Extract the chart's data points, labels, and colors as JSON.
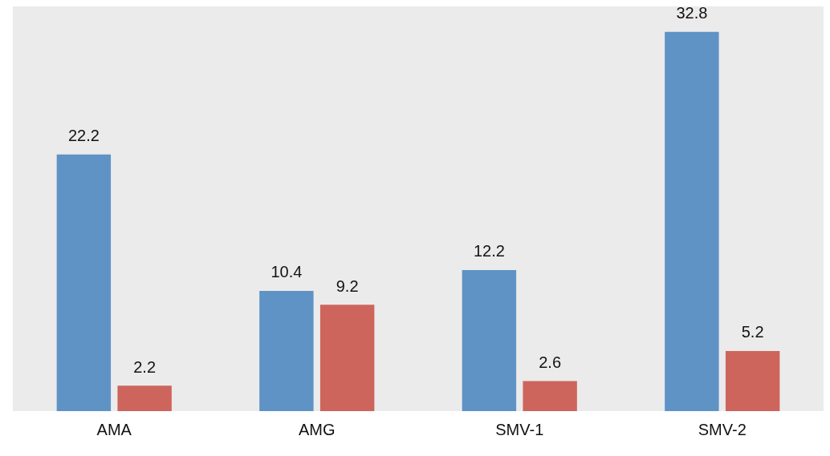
{
  "chart_data": {
    "type": "bar",
    "categories": [
      "AMA",
      "AMG",
      "SMV-1",
      "SMV-2"
    ],
    "series": [
      {
        "color": "#5f93c6",
        "values": [
          22.2,
          10.4,
          12.2,
          32.8
        ]
      },
      {
        "color": "#cd655c",
        "values": [
          2.2,
          9.2,
          2.6,
          5.2
        ]
      }
    ],
    "data_labels": true,
    "grid": false,
    "legend": false,
    "tick_labels": "x"
  }
}
